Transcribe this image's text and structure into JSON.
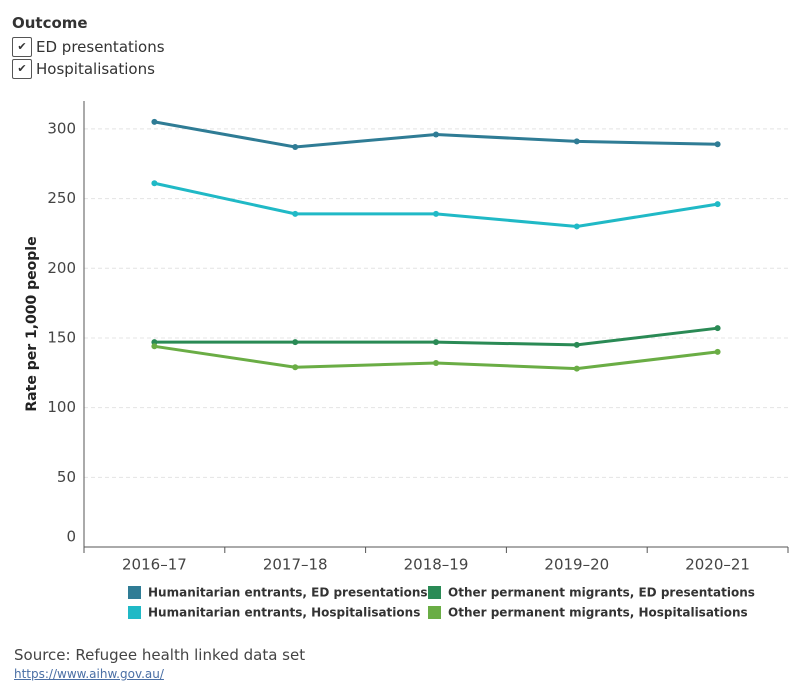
{
  "filter": {
    "title": "Outcome",
    "options": [
      "ED presentations",
      "Hospitalisations"
    ]
  },
  "chart_data": {
    "type": "line",
    "y_label": "Rate per 1,000 people",
    "categories": [
      "2016–17",
      "2017–18",
      "2018–19",
      "2019–20",
      "2020–21"
    ],
    "series": [
      {
        "name": "Humanitarian entrants, ED presentations",
        "color": "#2f7c95",
        "values": [
          305,
          287,
          296,
          291,
          289
        ]
      },
      {
        "name": "Other permanent migrants, ED presentations",
        "color": "#2a8a55",
        "values": [
          147,
          147,
          147,
          145,
          157
        ]
      },
      {
        "name": "Humanitarian entrants, Hospitalisations",
        "color": "#20b9c6",
        "values": [
          261,
          239,
          239,
          230,
          246
        ]
      },
      {
        "name": "Other permanent migrants, Hospitalisations",
        "color": "#6aad45",
        "values": [
          144,
          129,
          132,
          128,
          140
        ]
      }
    ],
    "ylim": [
      0,
      320
    ],
    "yticks": [
      0,
      50,
      100,
      150,
      200,
      250,
      300
    ],
    "grid": true
  },
  "source": {
    "text": "Source: Refugee health linked data set",
    "url": "https://www.aihw.gov.au/"
  }
}
